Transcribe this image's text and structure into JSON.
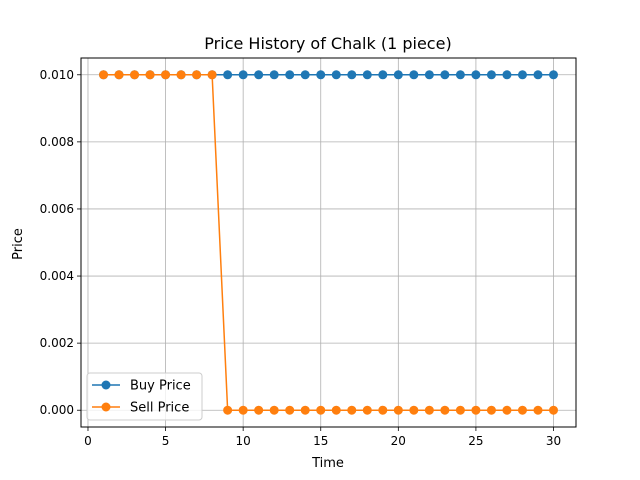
{
  "chart_data": {
    "type": "line",
    "title": "Price History of Chalk (1 piece)",
    "xlabel": "Time",
    "ylabel": "Price",
    "xlim": [
      -0.45,
      31.45
    ],
    "ylim": [
      -0.0005,
      0.0105
    ],
    "xticks": [
      0,
      5,
      10,
      15,
      20,
      25,
      30
    ],
    "xtick_labels": [
      "0",
      "5",
      "10",
      "15",
      "20",
      "25",
      "30"
    ],
    "yticks": [
      0.0,
      0.002,
      0.004,
      0.006,
      0.008,
      0.01
    ],
    "ytick_labels": [
      "0.000",
      "0.002",
      "0.004",
      "0.006",
      "0.008",
      "0.010"
    ],
    "grid": true,
    "legend_position": "lower-left",
    "x": [
      1,
      2,
      3,
      4,
      5,
      6,
      7,
      8,
      9,
      10,
      11,
      12,
      13,
      14,
      15,
      16,
      17,
      18,
      19,
      20,
      21,
      22,
      23,
      24,
      25,
      26,
      27,
      28,
      29,
      30
    ],
    "series": [
      {
        "name": "Buy Price",
        "color": "#1f77b4",
        "marker": "circle",
        "values": [
          0.01,
          0.01,
          0.01,
          0.01,
          0.01,
          0.01,
          0.01,
          0.01,
          0.01,
          0.01,
          0.01,
          0.01,
          0.01,
          0.01,
          0.01,
          0.01,
          0.01,
          0.01,
          0.01,
          0.01,
          0.01,
          0.01,
          0.01,
          0.01,
          0.01,
          0.01,
          0.01,
          0.01,
          0.01,
          0.01
        ]
      },
      {
        "name": "Sell Price",
        "color": "#ff7f0e",
        "marker": "circle",
        "values": [
          0.01,
          0.01,
          0.01,
          0.01,
          0.01,
          0.01,
          0.01,
          0.01,
          0.0,
          0.0,
          0.0,
          0.0,
          0.0,
          0.0,
          0.0,
          0.0,
          0.0,
          0.0,
          0.0,
          0.0,
          0.0,
          0.0,
          0.0,
          0.0,
          0.0,
          0.0,
          0.0,
          0.0,
          0.0,
          0.0
        ]
      }
    ]
  }
}
